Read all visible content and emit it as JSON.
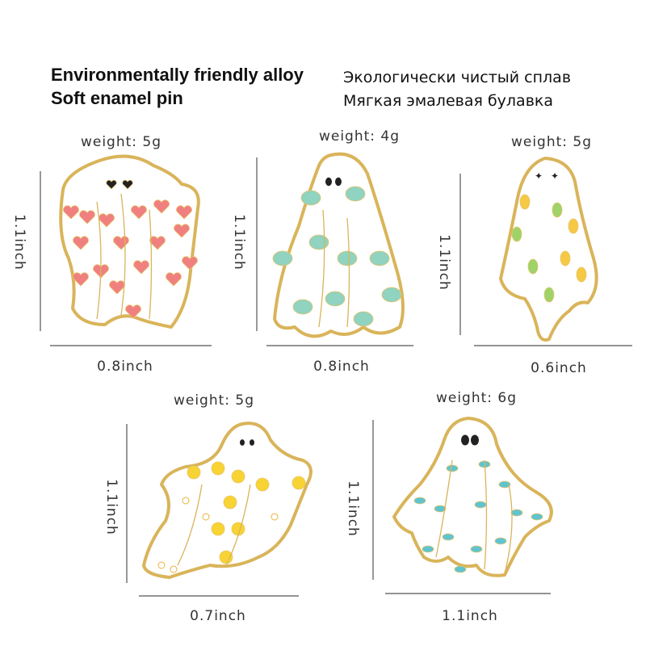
{
  "header": {
    "english": [
      "Environmentally friendly alloy",
      "Soft enamel pin"
    ],
    "russian": [
      "Экологически чистый сплав",
      "Мягкая эмалевая булавка"
    ]
  },
  "products": [
    {
      "weight": "weight: 5g",
      "height": "1.1inch",
      "width": "0.8inch"
    },
    {
      "weight": "weight: 4g",
      "height": "1.1inch",
      "width": "0.8inch"
    },
    {
      "weight": "weight: 5g",
      "height": "1.1inch",
      "width": "0.6inch"
    },
    {
      "weight": "weight: 5g",
      "height": "1.1inch",
      "width": "0.7inch"
    },
    {
      "weight": "weight: 6g",
      "height": "1.1inch",
      "width": "1.1inch"
    }
  ]
}
